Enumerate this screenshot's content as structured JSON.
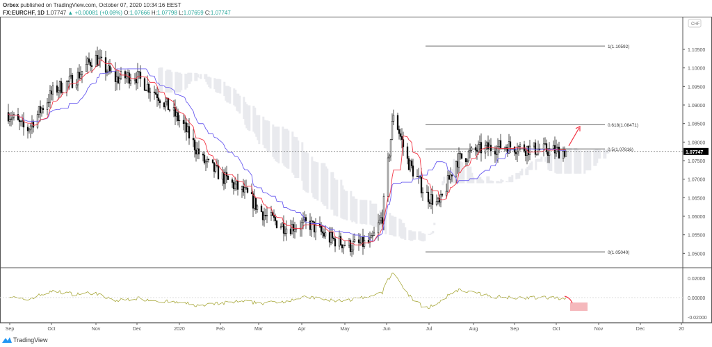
{
  "header": {
    "publisher": "Orbex",
    "published_text": "published on TradingView.com, October 07, 2020 10:34:16 EEST",
    "symbol": "FX:EURCHF, 1D",
    "last": "1.07747",
    "change": "+0.00081 (+0.08%)",
    "o_label": "O:",
    "o": "1.07666",
    "h_label": "H:",
    "h": "1.07798",
    "l_label": "L:",
    "l": "1.07659",
    "c_label": "C:",
    "c": "1.07747"
  },
  "footer": {
    "brand": "TradingView"
  },
  "colors": {
    "up": "#26a69a",
    "tenkan": "#f23645",
    "kijun": "#6a5cf0",
    "cloud": "#e9eaee",
    "oscillator": "#a8a83a",
    "arrow": "#f23645",
    "projection": "#f5b8bc"
  },
  "chart_data": {
    "type": "candlestick",
    "currency": "CHF",
    "last_price_label": "1.07747",
    "price_ticks": [
      "1.10500",
      "1.10000",
      "1.09500",
      "1.09000",
      "1.08500",
      "1.08000",
      "1.07500",
      "1.07000",
      "1.06500",
      "1.06000",
      "1.05500",
      "1.05000"
    ],
    "ylim": [
      1.0465,
      1.1095
    ],
    "oscillator_ticks": [
      "0.02000",
      "0.00000",
      "-0.02000"
    ],
    "time_ticks": [
      "Sep",
      "Oct",
      "Nov",
      "Dec",
      "2020",
      "Feb",
      "Mar",
      "Apr",
      "May",
      "Jun",
      "Jul",
      "Aug",
      "Sep",
      "Oct",
      "Nov",
      "Dec",
      "20"
    ],
    "close_path": [
      [
        "2019-09-01",
        1.088
      ],
      [
        "2019-09-15",
        1.083
      ],
      [
        "2019-10-05",
        1.094
      ],
      [
        "2019-10-20",
        1.097
      ],
      [
        "2019-11-03",
        1.103
      ],
      [
        "2019-11-18",
        1.097
      ],
      [
        "2019-12-02",
        1.098
      ],
      [
        "2019-12-18",
        1.093
      ],
      [
        "2020-01-05",
        1.085
      ],
      [
        "2020-01-20",
        1.075
      ],
      [
        "2020-02-05",
        1.07
      ],
      [
        "2020-02-20",
        1.066
      ],
      [
        "2020-03-05",
        1.06
      ],
      [
        "2020-03-20",
        1.057
      ],
      [
        "2020-04-05",
        1.058
      ],
      [
        "2020-04-20",
        1.054
      ],
      [
        "2020-05-05",
        1.052
      ],
      [
        "2020-05-20",
        1.053
      ],
      [
        "2020-05-28",
        1.06
      ],
      [
        "2020-06-05",
        1.088
      ],
      [
        "2020-06-15",
        1.075
      ],
      [
        "2020-06-28",
        1.066
      ],
      [
        "2020-07-08",
        1.063
      ],
      [
        "2020-07-20",
        1.075
      ],
      [
        "2020-08-05",
        1.078
      ],
      [
        "2020-08-25",
        1.079
      ],
      [
        "2020-09-15",
        1.078
      ],
      [
        "2020-10-07",
        1.07747
      ]
    ],
    "indicators": [
      "Tenkan-sen",
      "Kijun-sen",
      "Ichimoku cloud",
      "Oscillator"
    ],
    "fibonacci": [
      {
        "label": "1(1.10592)",
        "value": 1.10592
      },
      {
        "label": "0.618(1.08471)",
        "value": 1.08471
      },
      {
        "label": "0.5(1.07816)",
        "value": 1.07816
      },
      {
        "label": "0(1.05040)",
        "value": 1.0504
      }
    ]
  }
}
